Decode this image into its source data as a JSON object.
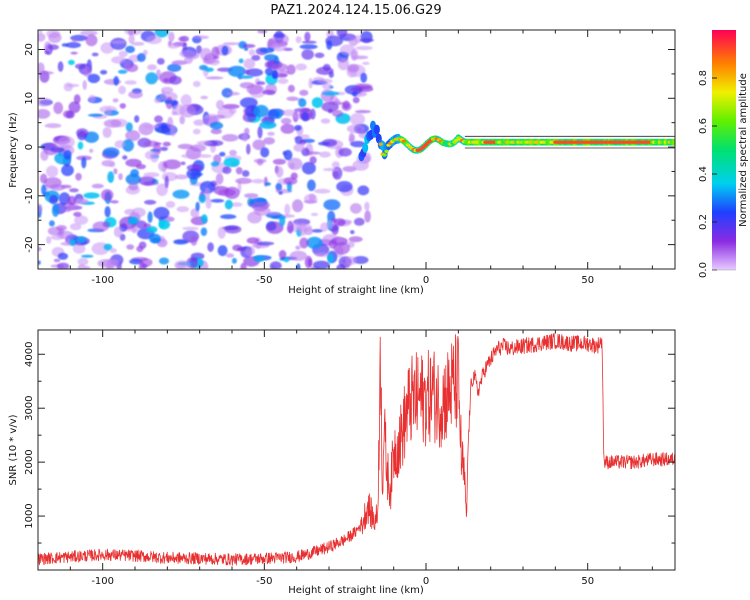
{
  "figure": {
    "title": "PAZ1.2024.124.15.06.G29"
  },
  "chart_data": [
    {
      "type": "heatmap",
      "xlabel": "Height of straight line (km)",
      "ylabel": "Frequency (Hz)",
      "xlim": [
        -120,
        77
      ],
      "ylim": [
        -25,
        24
      ],
      "xticks": [
        -100,
        -50,
        0,
        50
      ],
      "yticks": [
        -20,
        -10,
        0,
        10,
        20
      ],
      "colorbar": {
        "label": "Normalized spectral amplitude",
        "range": [
          0,
          1
        ],
        "ticks": [
          0.0,
          0.2,
          0.4,
          0.6,
          0.8
        ],
        "colormap": "rainbow (violet to red)"
      },
      "features": [
        {
          "region": "x from -120 to -18 km",
          "description": "scattered low-amplitude blobs across -25 to 24 Hz",
          "amplitude": [
            0.05,
            0.3
          ]
        },
        {
          "region": "x from -18 to 12 km",
          "description": "wavy narrow band near 0 Hz",
          "frequency_range": [
            -4,
            5
          ],
          "amplitude": [
            0.3,
            1.0
          ]
        },
        {
          "region": "x from 12 to 77 km",
          "description": "flat narrow band centred near 1 Hz",
          "frequency": 1,
          "amplitude": [
            0.4,
            1.0
          ]
        }
      ]
    },
    {
      "type": "line",
      "xlabel": "Height of straight line (km)",
      "ylabel": "SNR (10 * v/v)",
      "xlim": [
        -120,
        77
      ],
      "ylim": [
        0,
        4450
      ],
      "xticks": [
        -100,
        -50,
        0,
        50
      ],
      "yticks": [
        1000,
        2000,
        3000,
        4000
      ],
      "series": [
        {
          "color": "#e83030",
          "x": [
            -120,
            -110,
            -100,
            -90,
            -80,
            -70,
            -60,
            -50,
            -40,
            -35,
            -30,
            -25,
            -22,
            -20,
            -18,
            -16,
            -15,
            -14,
            -13.5,
            -13,
            -12,
            -11,
            -10,
            -8,
            -6,
            -5,
            -4,
            -2,
            0,
            2,
            4,
            6,
            8,
            10,
            11,
            12,
            12.5,
            13,
            14,
            15,
            16,
            18,
            20,
            22,
            24,
            26,
            30,
            35,
            40,
            45,
            50,
            53,
            54,
            54.5,
            55,
            60,
            65,
            70,
            77
          ],
          "y": [
            160,
            200,
            240,
            220,
            180,
            170,
            150,
            170,
            200,
            280,
            380,
            520,
            650,
            800,
            1200,
            900,
            1000,
            4100,
            1500,
            2600,
            1800,
            1500,
            2200,
            2400,
            2900,
            3100,
            3150,
            3200,
            3150,
            3300,
            3100,
            3200,
            3400,
            3500,
            2000,
            1700,
            850,
            2300,
            3500,
            3600,
            3300,
            3700,
            3900,
            4100,
            4150,
            4100,
            4150,
            4200,
            4250,
            4200,
            4200,
            4150,
            4250,
            4150,
            2000,
            2000,
            2000,
            2050,
            2050
          ]
        }
      ]
    }
  ]
}
